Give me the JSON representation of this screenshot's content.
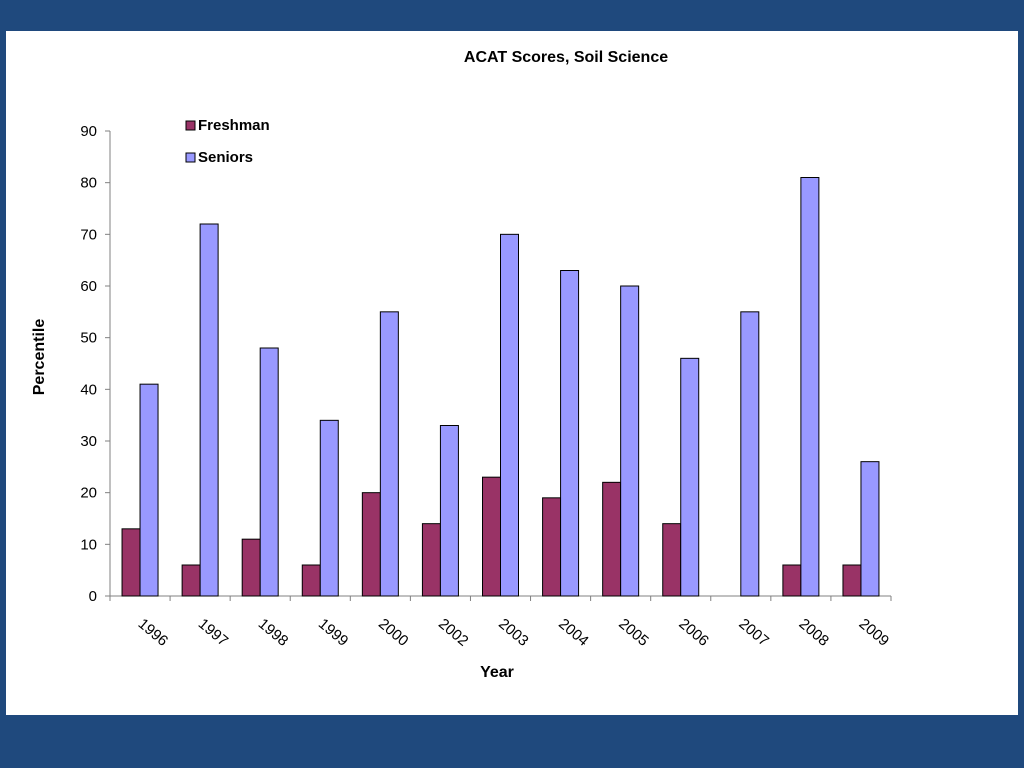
{
  "chart_data": {
    "type": "bar",
    "title": "ACAT Scores, Soil Science",
    "xlabel": "Year",
    "ylabel": "Percentile",
    "categories": [
      "1996",
      "1997",
      "1998",
      "1999",
      "2000",
      "2002",
      "2003",
      "2004",
      "2005",
      "2006",
      "2007",
      "2008",
      "2009"
    ],
    "series": [
      {
        "name": "Freshman",
        "color": "#993366",
        "values": [
          13,
          6,
          11,
          6,
          20,
          14,
          23,
          19,
          22,
          14,
          null,
          6,
          6
        ]
      },
      {
        "name": "Seniors",
        "color": "#9999ff",
        "values": [
          41,
          72,
          48,
          34,
          55,
          33,
          70,
          63,
          60,
          46,
          55,
          81,
          26
        ]
      }
    ],
    "ylim": [
      0,
      90
    ],
    "yticks": [
      0,
      10,
      20,
      30,
      40,
      50,
      60,
      70,
      80,
      90
    ],
    "grid": false,
    "legend_position": "top-left"
  }
}
